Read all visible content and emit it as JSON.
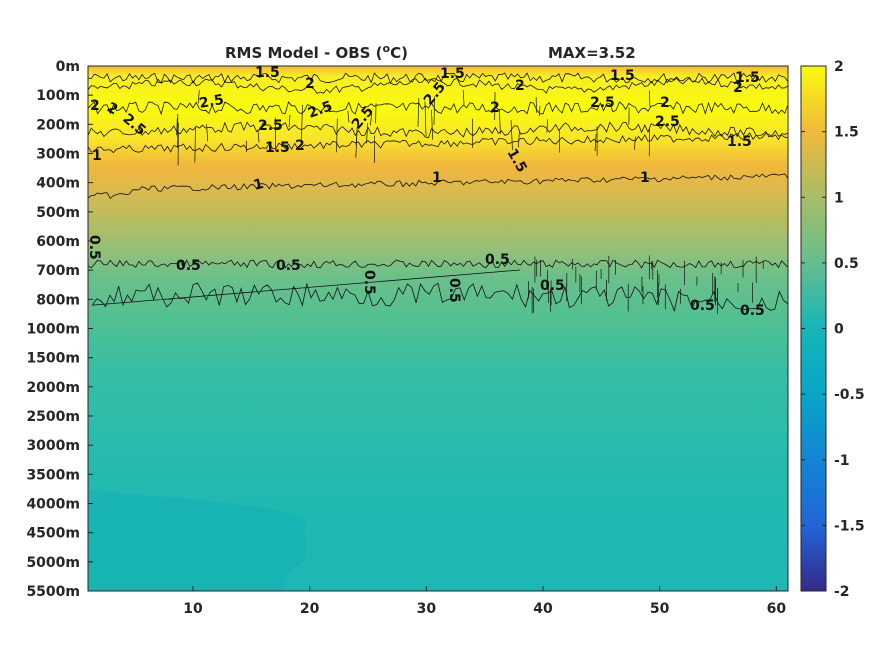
{
  "chart_data": {
    "type": "heatmap",
    "title": "RMS Model - OBS (",
    "title_sup": "o",
    "title_tail": "C)",
    "max_label": "MAX=3.52",
    "x_ticks": [
      10,
      20,
      30,
      40,
      50,
      60
    ],
    "x_range": [
      1,
      61
    ],
    "y_tick_labels": [
      "0m",
      "100m",
      "200m",
      "300m",
      "400m",
      "500m",
      "600m",
      "700m",
      "800m",
      "1000m",
      "1500m",
      "2000m",
      "2500m",
      "3000m",
      "3500m",
      "4000m",
      "4500m",
      "5000m",
      "5500m"
    ],
    "colorbar": {
      "range": [
        -2,
        2
      ],
      "ticks": [
        "2",
        "1.5",
        "1",
        "0.5",
        "0",
        "-0.5",
        "-1",
        "-1.5",
        "-2"
      ],
      "colormap": "parula"
    },
    "rms_profile": [
      {
        "depth": "0m",
        "value": 1.4
      },
      {
        "depth": "100m",
        "value": 2.2
      },
      {
        "depth": "200m",
        "value": 2.1
      },
      {
        "depth": "300m",
        "value": 1.4
      },
      {
        "depth": "400m",
        "value": 1.0
      },
      {
        "depth": "500m",
        "value": 0.85
      },
      {
        "depth": "600m",
        "value": 0.65
      },
      {
        "depth": "700m",
        "value": 0.45
      },
      {
        "depth": "800m",
        "value": 0.35
      },
      {
        "depth": "1000m",
        "value": 0.25
      },
      {
        "depth": "1500m",
        "value": 0.2
      },
      {
        "depth": "2000m",
        "value": 0.15
      },
      {
        "depth": "2500m",
        "value": 0.12
      },
      {
        "depth": "3000m",
        "value": 0.12
      },
      {
        "depth": "3500m",
        "value": 0.1
      },
      {
        "depth": "4000m",
        "value": 0.08
      },
      {
        "depth": "4500m",
        "value": 0.08
      },
      {
        "depth": "5000m",
        "value": 0.08
      },
      {
        "depth": "5500m",
        "value": 0.08
      }
    ],
    "contour_labels": [
      "1.5",
      "2",
      "1.5",
      "2",
      "1.5",
      "2",
      "1.5",
      "2",
      "2.5",
      "2.5",
      "2.5",
      "2.5",
      "2.5",
      "2",
      "2.5",
      "2",
      "2.5",
      "2",
      "2.5",
      "2",
      "1.5",
      "1.5",
      "1.5",
      "1",
      "1",
      "1",
      "1",
      "0.5",
      "0.5",
      "0.5",
      "0.5",
      "0.5",
      "0.5",
      "0.5",
      "0.5",
      "0.5"
    ]
  }
}
